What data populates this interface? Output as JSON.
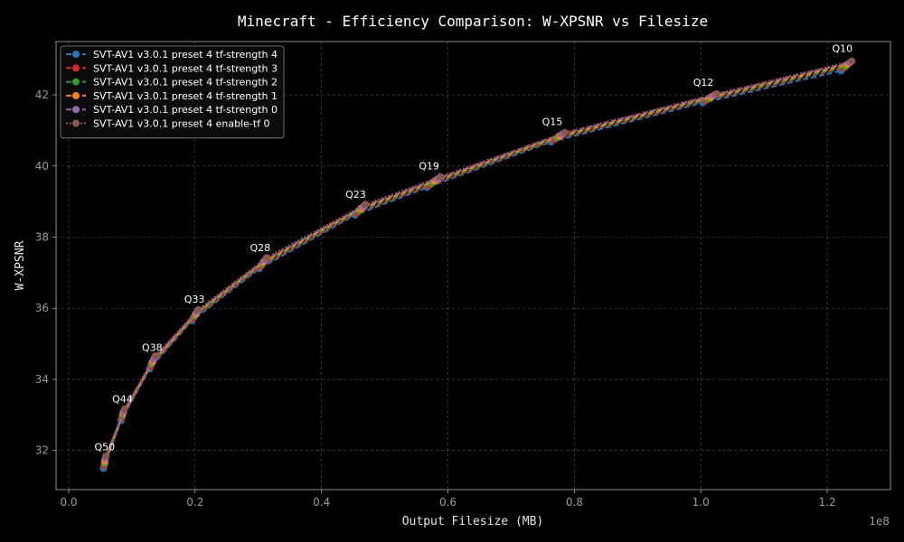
{
  "chart_data": {
    "type": "line",
    "title": "Minecraft - Efficiency Comparison: W-XPSNR vs Filesize",
    "xlabel": "Output Filesize (MB)",
    "ylabel": "W-XPSNR",
    "x_exponent": "1e8",
    "xlim": [
      -0.02,
      1.3
    ],
    "ylim": [
      30.9,
      43.5
    ],
    "xticks": [
      0.0,
      0.2,
      0.4,
      0.6,
      0.8,
      1.0,
      1.2
    ],
    "xtick_labels": [
      "0.0",
      "0.2",
      "0.4",
      "0.6",
      "0.8",
      "1.0",
      "1.2"
    ],
    "yticks": [
      32,
      34,
      36,
      38,
      40,
      42
    ],
    "ytick_labels": [
      "32",
      "34",
      "36",
      "38",
      "40",
      "42"
    ],
    "grid": true,
    "legend_position": "top-left",
    "series": [
      {
        "name": "SVT-AV1 v3.0.1 preset 4 tf-strength 4",
        "color": "#1f77b4",
        "dash": "6 3",
        "x": [
          0.055,
          0.083,
          0.128,
          0.195,
          0.302,
          0.453,
          0.567,
          0.763,
          1.003,
          1.222
        ],
        "y": [
          31.5,
          32.85,
          34.3,
          35.65,
          37.12,
          38.62,
          39.4,
          40.68,
          41.78,
          42.68
        ]
      },
      {
        "name": "SVT-AV1 v3.0.1 preset 4 tf-strength 3",
        "color": "#d62728",
        "dash": "6 3",
        "x": [
          0.056,
          0.084,
          0.13,
          0.197,
          0.304,
          0.456,
          0.571,
          0.768,
          1.008,
          1.226
        ],
        "y": [
          31.58,
          32.92,
          34.38,
          35.72,
          37.18,
          38.68,
          39.46,
          40.74,
          41.84,
          42.76
        ]
      },
      {
        "name": "SVT-AV1 v3.0.1 preset 4 tf-strength 2",
        "color": "#2ca02c",
        "dash": "6 3",
        "x": [
          0.057,
          0.085,
          0.131,
          0.199,
          0.306,
          0.459,
          0.575,
          0.772,
          1.012,
          1.229
        ],
        "y": [
          31.64,
          32.98,
          34.44,
          35.78,
          37.24,
          38.74,
          39.52,
          40.79,
          41.89,
          42.8
        ]
      },
      {
        "name": "SVT-AV1 v3.0.1 preset 4 tf-strength 1",
        "color": "#ff7f0e",
        "dash": "6 3",
        "x": [
          0.057,
          0.086,
          0.133,
          0.201,
          0.308,
          0.462,
          0.579,
          0.776,
          1.016,
          1.232
        ],
        "y": [
          31.7,
          33.04,
          34.5,
          35.84,
          37.3,
          38.8,
          39.58,
          40.84,
          41.94,
          42.86
        ]
      },
      {
        "name": "SVT-AV1 v3.0.1 preset 4 tf-strength 0",
        "color": "#9467bd",
        "dash": "6 3",
        "x": [
          0.058,
          0.087,
          0.135,
          0.203,
          0.311,
          0.466,
          0.584,
          0.781,
          1.021,
          1.236
        ],
        "y": [
          31.78,
          33.1,
          34.58,
          35.9,
          37.36,
          38.86,
          39.64,
          40.9,
          41.99,
          42.91
        ]
      },
      {
        "name": "SVT-AV1 v3.0.1 preset 4 enable-tf 0",
        "color": "#8c564b",
        "dash": "2 2",
        "x": [
          0.059,
          0.088,
          0.137,
          0.205,
          0.313,
          0.469,
          0.588,
          0.785,
          1.025,
          1.239
        ],
        "y": [
          31.84,
          33.16,
          34.66,
          35.96,
          37.42,
          38.92,
          39.7,
          40.94,
          42.03,
          42.95
        ]
      }
    ],
    "annotations": [
      {
        "text": "Q50",
        "x": 0.057,
        "y": 31.75
      },
      {
        "text": "Q44",
        "x": 0.085,
        "y": 33.1
      },
      {
        "text": "Q38",
        "x": 0.132,
        "y": 34.55
      },
      {
        "text": "Q33",
        "x": 0.199,
        "y": 35.9
      },
      {
        "text": "Q28",
        "x": 0.303,
        "y": 37.35
      },
      {
        "text": "Q23",
        "x": 0.454,
        "y": 38.85
      },
      {
        "text": "Q19",
        "x": 0.57,
        "y": 39.65
      },
      {
        "text": "Q15",
        "x": 0.765,
        "y": 40.9
      },
      {
        "text": "Q12",
        "x": 1.004,
        "y": 42.0
      },
      {
        "text": "Q10",
        "x": 1.224,
        "y": 42.95
      }
    ]
  }
}
